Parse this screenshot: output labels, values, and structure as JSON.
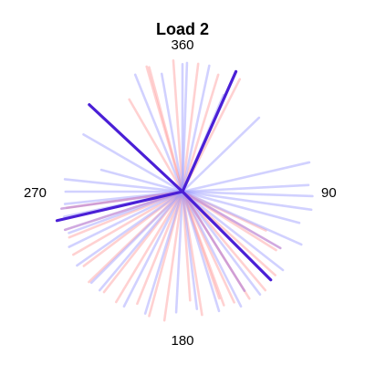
{
  "chart_data": {
    "type": "line",
    "title": "Load 2",
    "xlabel": "",
    "ylabel": "",
    "subtype": "radial-direction-plot",
    "direction_labels": [
      "360",
      "90",
      "180",
      "270"
    ],
    "rmax": 1.0,
    "grid": false,
    "legend": "none",
    "series": [
      {
        "color": "#ff9a9a",
        "opacity": 0.45,
        "emphasis": false,
        "rays": [
          {
            "angle": 345,
            "length": 0.98
          },
          {
            "angle": 344,
            "length": 0.99
          },
          {
            "angle": 356,
            "length": 1.0
          },
          {
            "angle": 7,
            "length": 0.98
          },
          {
            "angle": 17,
            "length": 0.93
          },
          {
            "angle": 27,
            "length": 0.96
          },
          {
            "angle": 330,
            "length": 0.81
          },
          {
            "angle": 122,
            "length": 0.84
          },
          {
            "angle": 132,
            "length": 0.95
          },
          {
            "angle": 140,
            "length": 0.98
          },
          {
            "angle": 148,
            "length": 0.96
          },
          {
            "angle": 155,
            "length": 0.93
          },
          {
            "angle": 161,
            "length": 0.86
          },
          {
            "angle": 171,
            "length": 0.95
          },
          {
            "angle": 188,
            "length": 0.99
          },
          {
            "angle": 195,
            "length": 0.98
          },
          {
            "angle": 202,
            "length": 0.92
          },
          {
            "angle": 211,
            "length": 0.98
          },
          {
            "angle": 218,
            "length": 0.97
          },
          {
            "angle": 226,
            "length": 0.99
          },
          {
            "angle": 233,
            "length": 0.94
          },
          {
            "angle": 240,
            "length": 0.96
          },
          {
            "angle": 248,
            "length": 0.93
          },
          {
            "angle": 257,
            "length": 0.91
          },
          {
            "angle": 262,
            "length": 0.89
          },
          {
            "angle": 115,
            "length": 0.7
          },
          {
            "angle": 160,
            "length": 0.92
          },
          {
            "angle": 176,
            "length": 0.83
          }
        ]
      },
      {
        "color": "#9a9aff",
        "opacity": 0.45,
        "emphasis": false,
        "rays": [
          {
            "angle": 2,
            "length": 0.98
          },
          {
            "angle": 0,
            "length": 0.97
          },
          {
            "angle": 338,
            "length": 0.96
          },
          {
            "angle": 23,
            "length": 0.8
          },
          {
            "angle": 46,
            "length": 0.81
          },
          {
            "angle": 300,
            "length": 0.87
          },
          {
            "angle": 276,
            "length": 0.9
          },
          {
            "angle": 270,
            "length": 0.89
          },
          {
            "angle": 264,
            "length": 0.9
          },
          {
            "angle": 258,
            "length": 0.92
          },
          {
            "angle": 250,
            "length": 0.92
          },
          {
            "angle": 235,
            "length": 0.98
          },
          {
            "angle": 225,
            "length": 0.98
          },
          {
            "angle": 220,
            "length": 0.98
          },
          {
            "angle": 207,
            "length": 0.98
          },
          {
            "angle": 197,
            "length": 0.97
          },
          {
            "angle": 183,
            "length": 0.92
          },
          {
            "angle": 173,
            "length": 0.9
          },
          {
            "angle": 163,
            "length": 0.95
          },
          {
            "angle": 153,
            "length": 0.98
          },
          {
            "angle": 143,
            "length": 0.98
          },
          {
            "angle": 128,
            "length": 0.97
          },
          {
            "angle": 114,
            "length": 0.99
          },
          {
            "angle": 105,
            "length": 0.92
          },
          {
            "angle": 98,
            "length": 0.99
          },
          {
            "angle": 92,
            "length": 0.99
          },
          {
            "angle": 87,
            "length": 0.96
          },
          {
            "angle": 77,
            "length": 0.99
          },
          {
            "angle": 350,
            "length": 0.91
          },
          {
            "angle": 12,
            "length": 0.98
          },
          {
            "angle": 285,
            "length": 0.64
          },
          {
            "angle": 244,
            "length": 0.96
          }
        ]
      },
      {
        "color": "#c08cd6",
        "opacity": 0.75,
        "emphasis": false,
        "rays": [
          {
            "angle": 120,
            "length": 0.86
          },
          {
            "angle": 252,
            "length": 0.94
          },
          {
            "angle": 262,
            "length": 0.93
          },
          {
            "angle": 148,
            "length": 0.89
          }
        ]
      },
      {
        "color": "#4a1fd6",
        "opacity": 1.0,
        "emphasis": true,
        "rays": [
          {
            "angle": 24,
            "length": 1.0
          },
          {
            "angle": 135,
            "length": 0.95
          },
          {
            "angle": 257,
            "length": 0.98
          },
          {
            "angle": 313,
            "length": 0.97
          }
        ]
      }
    ]
  }
}
